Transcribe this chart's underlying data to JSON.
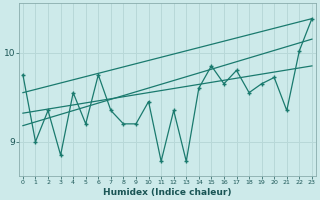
{
  "title": "",
  "xlabel": "Humidex (Indice chaleur)",
  "ylabel": "",
  "bg_color": "#cdeaea",
  "line_color": "#1a7a6e",
  "grid_color": "#b8d8d8",
  "x_ticks": [
    0,
    1,
    2,
    3,
    4,
    5,
    6,
    7,
    8,
    9,
    10,
    11,
    12,
    13,
    14,
    15,
    16,
    17,
    18,
    19,
    20,
    21,
    22,
    23
  ],
  "y_ticks": [
    9,
    10
  ],
  "ylim": [
    8.62,
    10.55
  ],
  "xlim": [
    -0.3,
    23.3
  ],
  "main_line": [
    9.75,
    9.0,
    9.35,
    8.85,
    9.55,
    9.2,
    9.75,
    9.35,
    9.2,
    9.2,
    9.45,
    8.78,
    9.35,
    8.78,
    9.6,
    9.85,
    9.65,
    9.8,
    9.55,
    9.65,
    9.72,
    9.35,
    10.02,
    10.38
  ],
  "trend_upper_start": 9.55,
  "trend_upper_end": 10.38,
  "trend_lower_start": 9.18,
  "trend_lower_end": 10.15,
  "trend_mid_start": 9.32,
  "trend_mid_end": 9.85
}
